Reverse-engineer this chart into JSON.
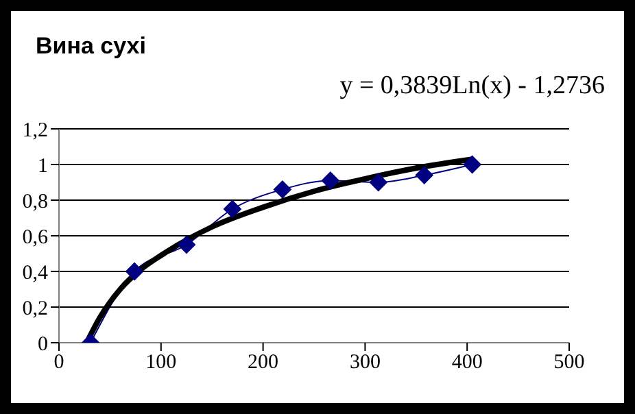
{
  "chart_data": {
    "type": "line",
    "title": "Вина сухі",
    "annotations": [
      "y = 0,3839Ln(x) - 1,2736"
    ],
    "xlim": [
      0,
      500
    ],
    "xticks": [
      0,
      100,
      200,
      300,
      400,
      500
    ],
    "ylim": [
      0,
      1.2
    ],
    "yticks": [
      0,
      {
        "value": 0.2,
        "label": "0,2"
      },
      {
        "value": 0.4,
        "label": "0,4"
      },
      {
        "value": 0.6,
        "label": "0,6"
      },
      {
        "value": 0.8,
        "label": "0,8"
      },
      1,
      {
        "value": 1.2,
        "label": "1,2"
      }
    ],
    "grid": "y",
    "marker": "diamond",
    "series": [
      {
        "color": "#000080",
        "x": [
          31,
          74,
          125,
          170,
          219,
          266,
          313,
          358,
          405
        ],
        "values": [
          0,
          0.4,
          0.55,
          0.75,
          0.86,
          0.91,
          0.9,
          0.94,
          1
        ]
      },
      {
        "color": "#000000",
        "marker": "none",
        "x": [
          28,
          40,
          60,
          80,
          100,
          150,
          200,
          250,
          300,
          350,
          405
        ],
        "values": [
          0.01,
          0.14,
          0.3,
          0.41,
          0.49,
          0.65,
          0.76,
          0.85,
          0.92,
          0.98,
          1.03
        ]
      }
    ]
  }
}
